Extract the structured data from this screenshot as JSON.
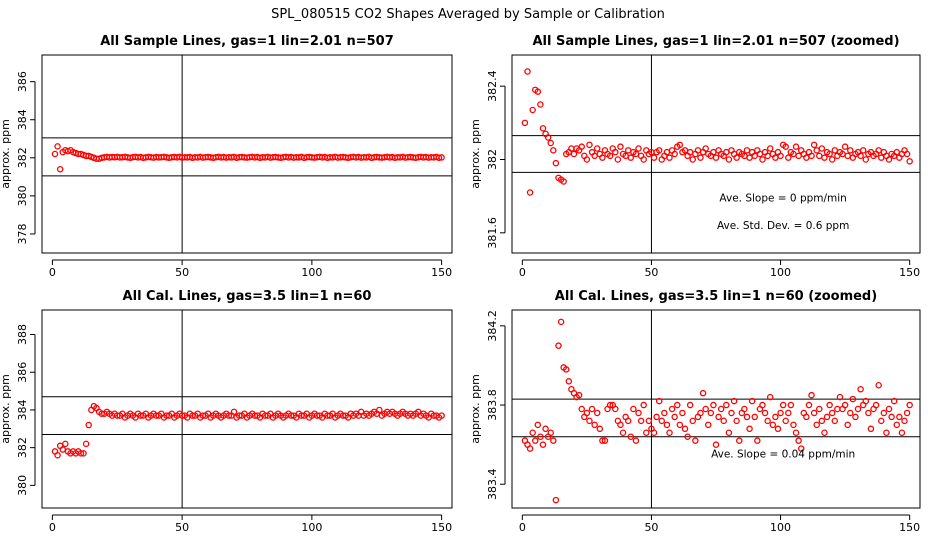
{
  "page": {
    "title": "SPL_080515  CO2 Shapes Averaged by Sample or Calibration"
  },
  "chart_data": [
    {
      "type": "scatter",
      "title": "All Sample Lines, gas=1 lin=2.01 n=507",
      "ylabel": "approx. ppm",
      "xlim": [
        -4,
        154
      ],
      "ylim": [
        377,
        387.4
      ],
      "xticks": [
        0,
        50,
        100,
        150
      ],
      "yticks": [
        378,
        380,
        382,
        384,
        386
      ],
      "vline": 50,
      "hlines": [
        381.05,
        383.05
      ],
      "point_color": "#ff0000",
      "annotations": [],
      "x": [
        1,
        2,
        3,
        4,
        5,
        6,
        7,
        8,
        9,
        10,
        11,
        12,
        13,
        14,
        15,
        16,
        17,
        18,
        19,
        20,
        21,
        22,
        23,
        24,
        25,
        26,
        27,
        28,
        29,
        30,
        31,
        32,
        33,
        34,
        35,
        36,
        37,
        38,
        39,
        40,
        41,
        42,
        43,
        44,
        45,
        46,
        47,
        48,
        49,
        50,
        51,
        52,
        53,
        54,
        55,
        56,
        57,
        58,
        59,
        60,
        61,
        62,
        63,
        64,
        65,
        66,
        67,
        68,
        69,
        70,
        71,
        72,
        73,
        74,
        75,
        76,
        77,
        78,
        79,
        80,
        81,
        82,
        83,
        84,
        85,
        86,
        87,
        88,
        89,
        90,
        91,
        92,
        93,
        94,
        95,
        96,
        97,
        98,
        99,
        100,
        101,
        102,
        103,
        104,
        105,
        106,
        107,
        108,
        109,
        110,
        111,
        112,
        113,
        114,
        115,
        116,
        117,
        118,
        119,
        120,
        121,
        122,
        123,
        124,
        125,
        126,
        127,
        128,
        129,
        130,
        131,
        132,
        133,
        134,
        135,
        136,
        137,
        138,
        139,
        140,
        141,
        142,
        143,
        144,
        145,
        146,
        147,
        148,
        149,
        150
      ],
      "y": [
        382.2,
        382.6,
        381.4,
        382.3,
        382.4,
        382.35,
        382.4,
        382.3,
        382.25,
        382.2,
        382.2,
        382.15,
        382.1,
        382.1,
        382.05,
        382.0,
        381.95,
        381.95,
        382.0,
        382.02,
        382.05,
        382.02,
        382.04,
        382.03,
        382.05,
        382.02,
        382.03,
        382.05,
        382.02,
        382.0,
        382.03,
        382.05,
        382.02,
        382.04,
        382.0,
        382.02,
        382.05,
        382.03,
        382.01,
        382.04,
        382.02,
        382.03,
        382.05,
        382.02,
        382.0,
        382.03,
        382.04,
        382.02,
        382.05,
        382.01,
        382.03,
        382.02,
        382.04,
        382.0,
        382.03,
        382.02,
        382.05,
        382.01,
        382.03,
        382.04,
        382.02,
        382.0,
        382.03,
        382.05,
        382.02,
        382.04,
        382.01,
        382.03,
        382.02,
        382.05,
        382.0,
        382.03,
        382.04,
        382.02,
        382.01,
        382.03,
        382.05,
        382.02,
        382.04,
        382.0,
        382.03,
        382.02,
        382.05,
        382.01,
        382.03,
        382.04,
        382.02,
        382.0,
        382.03,
        382.05,
        382.02,
        382.04,
        382.01,
        382.03,
        382.02,
        382.05,
        382.0,
        382.03,
        382.04,
        382.02,
        382.01,
        382.03,
        382.05,
        382.02,
        382.04,
        382.0,
        382.03,
        382.02,
        382.05,
        382.01,
        382.03,
        382.04,
        382.02,
        382.0,
        382.03,
        382.05,
        382.02,
        382.04,
        382.01,
        382.03,
        382.02,
        382.05,
        382.0,
        382.03,
        382.04,
        382.02,
        382.01,
        382.03,
        382.05,
        382.02,
        382.04,
        382.0,
        382.03,
        382.02,
        382.05,
        382.01,
        382.03,
        382.04,
        382.02,
        382.0,
        382.03,
        382.05,
        382.02,
        382.04,
        382.01,
        382.03,
        382.02,
        382.05,
        382.0,
        382.02
      ]
    },
    {
      "type": "scatter",
      "title": "All Sample Lines, gas=1 lin=2.01 n=507 (zoomed)",
      "ylabel": "approx. ppm",
      "xlim": [
        -4,
        154
      ],
      "ylim": [
        381.49,
        382.57
      ],
      "xticks": [
        0,
        50,
        100,
        150
      ],
      "yticks": [
        381.6,
        382.0,
        382.4
      ],
      "vline": 50,
      "hlines": [
        382.13,
        381.93
      ],
      "point_color": "#ff0000",
      "annotations": [
        {
          "text": "Ave. Slope =  0  ppm/min",
          "x": 101,
          "y": 381.77
        },
        {
          "text": "Ave. Std. Dev. =  0.6  ppm",
          "x": 101,
          "y": 381.62
        }
      ],
      "x": [
        1,
        2,
        3,
        4,
        5,
        6,
        7,
        8,
        9,
        10,
        11,
        12,
        13,
        14,
        15,
        16,
        17,
        18,
        19,
        20,
        21,
        22,
        23,
        24,
        25,
        26,
        27,
        28,
        29,
        30,
        31,
        32,
        33,
        34,
        35,
        36,
        37,
        38,
        39,
        40,
        41,
        42,
        43,
        44,
        45,
        46,
        47,
        48,
        49,
        50,
        51,
        52,
        53,
        54,
        55,
        56,
        57,
        58,
        59,
        60,
        61,
        62,
        63,
        64,
        65,
        66,
        67,
        68,
        69,
        70,
        71,
        72,
        73,
        74,
        75,
        76,
        77,
        78,
        79,
        80,
        81,
        82,
        83,
        84,
        85,
        86,
        87,
        88,
        89,
        90,
        91,
        92,
        93,
        94,
        95,
        96,
        97,
        98,
        99,
        100,
        101,
        102,
        103,
        104,
        105,
        106,
        107,
        108,
        109,
        110,
        111,
        112,
        113,
        114,
        115,
        116,
        117,
        118,
        119,
        120,
        121,
        122,
        123,
        124,
        125,
        126,
        127,
        128,
        129,
        130,
        131,
        132,
        133,
        134,
        135,
        136,
        137,
        138,
        139,
        140,
        141,
        142,
        143,
        144,
        145,
        146,
        147,
        148,
        149,
        150
      ],
      "y": [
        382.2,
        382.48,
        381.82,
        382.27,
        382.38,
        382.37,
        382.3,
        382.17,
        382.14,
        382.12,
        382.09,
        382.05,
        381.98,
        381.9,
        381.89,
        381.88,
        382.03,
        382.04,
        382.06,
        382.03,
        382.06,
        382.05,
        382.07,
        382.02,
        382.0,
        382.08,
        382.04,
        382.02,
        382.06,
        382.03,
        382.01,
        382.05,
        382.03,
        382.02,
        382.06,
        382.04,
        382.0,
        382.07,
        382.03,
        382.02,
        382.05,
        382.01,
        382.04,
        382.03,
        382.06,
        382.02,
        382.0,
        382.05,
        382.03,
        382.04,
        382.01,
        382.04,
        382.05,
        382.0,
        382.02,
        382.04,
        382.01,
        382.05,
        382.03,
        382.07,
        382.08,
        382.04,
        382.05,
        382.02,
        382.04,
        382.0,
        382.03,
        382.05,
        382.01,
        382.04,
        382.06,
        382.03,
        382.02,
        382.04,
        382.01,
        382.05,
        382.03,
        382.02,
        382.04,
        382.0,
        382.05,
        382.03,
        382.01,
        382.04,
        382.03,
        382.02,
        382.05,
        382.01,
        382.04,
        382.02,
        382.05,
        382.03,
        382.0,
        382.04,
        382.02,
        382.06,
        382.03,
        382.01,
        382.04,
        382.02,
        382.08,
        382.07,
        382.01,
        382.04,
        382.03,
        382.07,
        382.02,
        382.05,
        382.03,
        382.01,
        382.04,
        382.02,
        382.08,
        382.05,
        382.02,
        382.06,
        382.01,
        382.04,
        382.03,
        382.0,
        382.05,
        382.02,
        382.04,
        382.03,
        382.07,
        382.02,
        382.05,
        382.01,
        382.03,
        382.04,
        382.02,
        382.05,
        382.0,
        382.03,
        382.04,
        382.02,
        382.03,
        382.05,
        382.01,
        382.04,
        382.02,
        382.0,
        382.03,
        382.02,
        382.04,
        382.01,
        382.03,
        382.05,
        382.03,
        381.99
      ]
    },
    {
      "type": "scatter",
      "title": "All Cal. Lines, gas=3.5 lin=1 n=60",
      "ylabel": "approx. ppm",
      "xlim": [
        -4,
        154
      ],
      "ylim": [
        378.8,
        389.3
      ],
      "xticks": [
        0,
        50,
        100,
        150
      ],
      "yticks": [
        380,
        382,
        384,
        386,
        388
      ],
      "vline": 50,
      "hlines": [
        384.7,
        382.7
      ],
      "point_color": "#ff0000",
      "annotations": [],
      "x": [
        1,
        2,
        3,
        4,
        5,
        6,
        7,
        8,
        9,
        10,
        11,
        12,
        13,
        14,
        15,
        16,
        17,
        18,
        19,
        20,
        21,
        22,
        23,
        24,
        25,
        26,
        27,
        28,
        29,
        30,
        31,
        32,
        33,
        34,
        35,
        36,
        37,
        38,
        39,
        40,
        41,
        42,
        43,
        44,
        45,
        46,
        47,
        48,
        49,
        50,
        51,
        52,
        53,
        54,
        55,
        56,
        57,
        58,
        59,
        60,
        61,
        62,
        63,
        64,
        65,
        66,
        67,
        68,
        69,
        70,
        71,
        72,
        73,
        74,
        75,
        76,
        77,
        78,
        79,
        80,
        81,
        82,
        83,
        84,
        85,
        86,
        87,
        88,
        89,
        90,
        91,
        92,
        93,
        94,
        95,
        96,
        97,
        98,
        99,
        100,
        101,
        102,
        103,
        104,
        105,
        106,
        107,
        108,
        109,
        110,
        111,
        112,
        113,
        114,
        115,
        116,
        117,
        118,
        119,
        120,
        121,
        122,
        123,
        124,
        125,
        126,
        127,
        128,
        129,
        130,
        131,
        132,
        133,
        134,
        135,
        136,
        137,
        138,
        139,
        140,
        141,
        142,
        143,
        144,
        145,
        146,
        147,
        148,
        149,
        150
      ],
      "y": [
        381.8,
        381.6,
        382.1,
        381.9,
        382.2,
        381.8,
        381.7,
        381.8,
        381.7,
        381.8,
        381.7,
        381.7,
        382.2,
        383.2,
        384.0,
        384.2,
        384.1,
        383.9,
        383.8,
        383.8,
        383.9,
        383.8,
        383.7,
        383.8,
        383.7,
        383.7,
        383.8,
        383.6,
        383.7,
        383.8,
        383.7,
        383.6,
        383.8,
        383.7,
        383.7,
        383.8,
        383.6,
        383.7,
        383.8,
        383.7,
        383.7,
        383.8,
        383.6,
        383.7,
        383.7,
        383.8,
        383.6,
        383.7,
        383.8,
        383.7,
        383.7,
        383.6,
        383.8,
        383.7,
        383.7,
        383.8,
        383.6,
        383.7,
        383.7,
        383.8,
        383.6,
        383.7,
        383.8,
        383.7,
        383.6,
        383.7,
        383.8,
        383.7,
        383.7,
        383.9,
        383.6,
        383.7,
        383.7,
        383.8,
        383.6,
        383.7,
        383.8,
        383.7,
        383.7,
        383.6,
        383.8,
        383.7,
        383.7,
        383.8,
        383.6,
        383.7,
        383.8,
        383.7,
        383.6,
        383.7,
        383.8,
        383.7,
        383.7,
        383.6,
        383.8,
        383.7,
        383.7,
        383.8,
        383.6,
        383.7,
        383.8,
        383.7,
        383.7,
        383.6,
        383.8,
        383.7,
        383.7,
        383.8,
        383.6,
        383.7,
        383.8,
        383.7,
        383.7,
        383.6,
        383.8,
        383.7,
        383.8,
        383.7,
        383.9,
        383.7,
        383.8,
        383.7,
        383.8,
        383.9,
        383.8,
        384.0,
        383.7,
        383.8,
        383.9,
        383.8,
        383.9,
        383.8,
        383.7,
        383.8,
        383.9,
        383.8,
        383.7,
        383.8,
        383.7,
        383.8,
        383.9,
        383.7,
        383.8,
        383.7,
        383.6,
        383.8,
        383.7,
        383.7,
        383.6,
        383.7
      ]
    },
    {
      "type": "scatter",
      "title": "All Cal. Lines, gas=3.5 lin=1 n=60 (zoomed)",
      "ylabel": "approx. ppm",
      "xlim": [
        -4,
        154
      ],
      "ylim": [
        383.28,
        384.28
      ],
      "xticks": [
        0,
        50,
        100,
        150
      ],
      "yticks": [
        383.4,
        383.8,
        384.2
      ],
      "vline": 50,
      "hlines": [
        383.83,
        383.64
      ],
      "point_color": "#ff0000",
      "annotations": [
        {
          "text": "Ave. Slope =  0.04  ppm/min",
          "x": 101,
          "y": 383.535
        }
      ],
      "x": [
        1,
        2,
        3,
        4,
        5,
        6,
        7,
        8,
        9,
        10,
        11,
        12,
        13,
        14,
        15,
        16,
        17,
        18,
        19,
        20,
        21,
        22,
        23,
        24,
        25,
        26,
        27,
        28,
        29,
        30,
        31,
        32,
        33,
        34,
        35,
        36,
        37,
        38,
        39,
        40,
        41,
        42,
        43,
        44,
        45,
        46,
        47,
        48,
        49,
        50,
        51,
        52,
        53,
        54,
        55,
        56,
        57,
        58,
        59,
        60,
        61,
        62,
        63,
        64,
        65,
        66,
        67,
        68,
        69,
        70,
        71,
        72,
        73,
        74,
        75,
        76,
        77,
        78,
        79,
        80,
        81,
        82,
        83,
        84,
        85,
        86,
        87,
        88,
        89,
        90,
        91,
        92,
        93,
        94,
        95,
        96,
        97,
        98,
        99,
        100,
        101,
        102,
        103,
        104,
        105,
        106,
        107,
        108,
        109,
        110,
        111,
        112,
        113,
        114,
        115,
        116,
        117,
        118,
        119,
        120,
        121,
        122,
        123,
        124,
        125,
        126,
        127,
        128,
        129,
        130,
        131,
        132,
        133,
        134,
        135,
        136,
        137,
        138,
        139,
        140,
        141,
        142,
        143,
        144,
        145,
        146,
        147,
        148,
        149,
        150
      ],
      "y": [
        383.62,
        383.6,
        383.58,
        383.66,
        383.62,
        383.7,
        383.64,
        383.6,
        383.68,
        383.64,
        383.66,
        383.62,
        383.32,
        384.1,
        384.22,
        383.99,
        383.98,
        383.92,
        383.88,
        383.86,
        383.84,
        383.85,
        383.78,
        383.74,
        383.76,
        383.72,
        383.78,
        383.7,
        383.76,
        383.68,
        383.62,
        383.62,
        383.78,
        383.8,
        383.8,
        383.78,
        383.72,
        383.7,
        383.66,
        383.74,
        383.72,
        383.64,
        383.78,
        383.62,
        383.76,
        383.72,
        383.8,
        383.66,
        383.72,
        383.68,
        383.66,
        383.74,
        383.82,
        383.72,
        383.76,
        383.7,
        383.66,
        383.78,
        383.74,
        383.8,
        383.7,
        383.76,
        383.68,
        383.64,
        383.8,
        383.72,
        383.62,
        383.74,
        383.76,
        383.86,
        383.78,
        383.7,
        383.76,
        383.8,
        383.6,
        383.74,
        383.78,
        383.72,
        383.8,
        383.66,
        383.76,
        383.82,
        383.72,
        383.62,
        383.76,
        383.78,
        383.74,
        383.68,
        383.82,
        383.74,
        383.62,
        383.78,
        383.8,
        383.76,
        383.72,
        383.84,
        383.7,
        383.74,
        383.68,
        383.76,
        383.8,
        383.72,
        383.76,
        383.8,
        383.7,
        383.66,
        383.62,
        383.58,
        383.76,
        383.74,
        383.8,
        383.85,
        383.76,
        383.7,
        383.78,
        383.72,
        383.66,
        383.74,
        383.8,
        383.76,
        383.72,
        383.78,
        383.84,
        383.78,
        383.8,
        383.7,
        383.76,
        383.83,
        383.74,
        383.78,
        383.88,
        383.8,
        383.82,
        383.76,
        383.68,
        383.78,
        383.8,
        383.9,
        383.72,
        383.76,
        383.66,
        383.78,
        383.74,
        383.82,
        383.7,
        383.74,
        383.66,
        383.72,
        383.76,
        383.8
      ]
    }
  ]
}
